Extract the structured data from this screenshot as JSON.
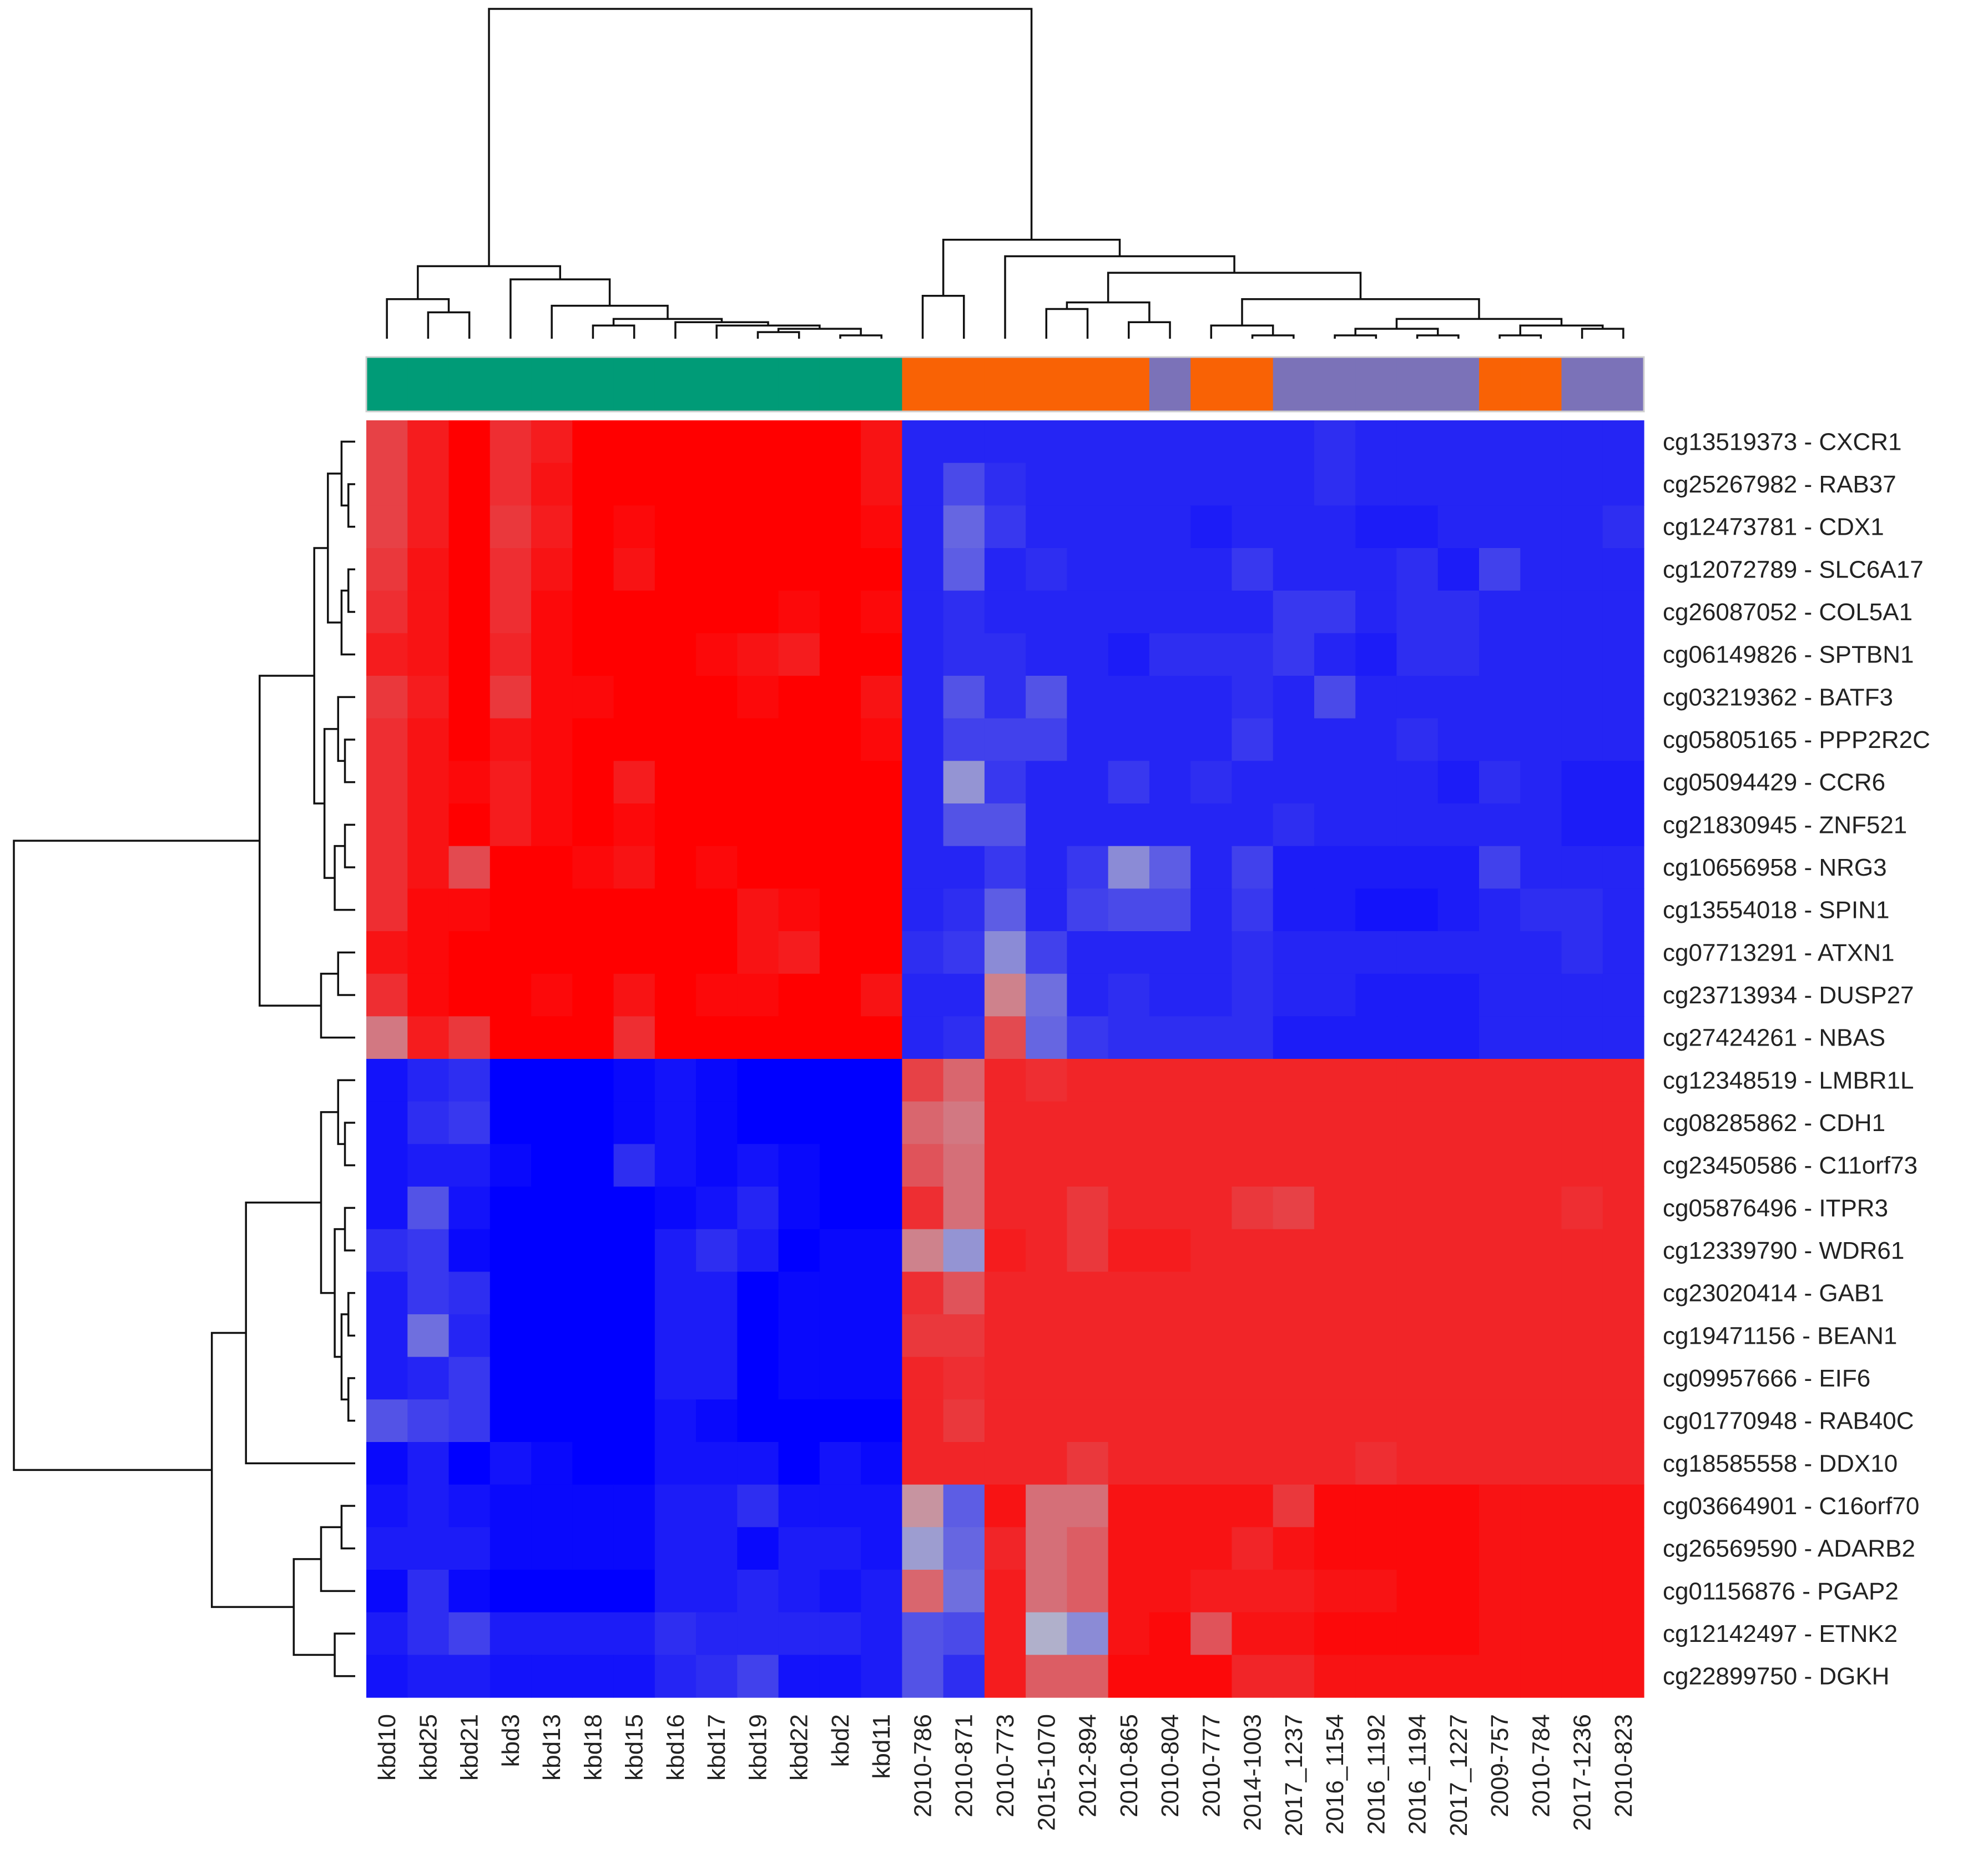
{
  "chart_data": {
    "type": "heatmap",
    "title": "",
    "columns": [
      "kbd10",
      "kbd25",
      "kbd21",
      "kbd3",
      "kbd13",
      "kbd18",
      "kbd15",
      "kbd16",
      "kbd17",
      "kbd19",
      "kbd22",
      "kbd2",
      "kbd11",
      "2010-786",
      "2010-871",
      "2010-773",
      "2015-1070",
      "2012-894",
      "2010-865",
      "2010-804",
      "2010-777",
      "2014-1003",
      "2017_1237",
      "2016_1154",
      "2016_1192",
      "2016_1194",
      "2017_1227",
      "2009-757",
      "2010-784",
      "2017-1236",
      "2010-823"
    ],
    "rows": [
      "cg13519373 - CXCR1",
      "cg25267982 - RAB37",
      "cg12473781 - CDX1",
      "cg12072789 - SLC6A17",
      "cg26087052 - COL5A1",
      "cg06149826 - SPTBN1",
      "cg03219362 - BATF3",
      "cg05805165 - PPP2R2C",
      "cg05094429 - CCR6",
      "cg21830945 - ZNF521",
      "cg10656958 - NRG3",
      "cg13554018 - SPIN1",
      "cg07713291 - ATXN1",
      "cg23713934 - DUSP27",
      "cg27424261 - NBAS",
      "cg12348519 - LMBR1L",
      "cg08285862 - CDH1",
      "cg23450586 - C11orf73",
      "cg05876496 - ITPR3",
      "cg12339790 - WDR61",
      "cg23020414 - GAB1",
      "cg19471156 - BEAN1",
      "cg09957666 - EIF6",
      "cg01770948 - RAB40C",
      "cg18585558 - DDX10",
      "cg03664901 - C16orf70",
      "cg26569590 - ADARB2",
      "cg01156876 - PGAP2",
      "cg12142497 - ETNK2",
      "cg22899750 - DGKH"
    ],
    "column_groups": [
      "A",
      "A",
      "A",
      "A",
      "A",
      "A",
      "A",
      "A",
      "A",
      "A",
      "A",
      "A",
      "A",
      "B",
      "B",
      "B",
      "B",
      "B",
      "B",
      "C",
      "B",
      "B",
      "C",
      "C",
      "C",
      "C",
      "C",
      "B",
      "B",
      "C",
      "C"
    ],
    "group_colors": {
      "A": "#009b77",
      "B": "#f96205",
      "C": "#7b72b8"
    },
    "color_scale": {
      "low": "#0000ff",
      "mid": "#b9b9c8",
      "high": "#ff0000",
      "range": [
        -1,
        1
      ]
    },
    "values": [
      [
        0.65,
        0.85,
        1.0,
        0.75,
        0.85,
        1.0,
        1.0,
        1.0,
        1.0,
        1.0,
        1.0,
        1.0,
        0.9,
        -0.8,
        -0.8,
        -0.8,
        -0.8,
        -0.8,
        -0.8,
        -0.8,
        -0.8,
        -0.8,
        -0.8,
        -0.75,
        -0.8,
        -0.8,
        -0.8,
        -0.8,
        -0.8,
        -0.8,
        -0.8
      ],
      [
        0.65,
        0.85,
        1.0,
        0.75,
        0.9,
        1.0,
        1.0,
        1.0,
        1.0,
        1.0,
        1.0,
        1.0,
        0.9,
        -0.8,
        -0.6,
        -0.75,
        -0.8,
        -0.8,
        -0.8,
        -0.8,
        -0.8,
        -0.8,
        -0.8,
        -0.75,
        -0.8,
        -0.8,
        -0.8,
        -0.8,
        -0.8,
        -0.8,
        -0.8
      ],
      [
        0.65,
        0.85,
        1.0,
        0.7,
        0.85,
        1.0,
        0.95,
        1.0,
        1.0,
        1.0,
        1.0,
        1.0,
        0.95,
        -0.8,
        -0.45,
        -0.7,
        -0.8,
        -0.8,
        -0.8,
        -0.8,
        -0.85,
        -0.8,
        -0.8,
        -0.8,
        -0.85,
        -0.85,
        -0.8,
        -0.8,
        -0.8,
        -0.8,
        -0.75
      ],
      [
        0.7,
        0.9,
        1.0,
        0.75,
        0.9,
        1.0,
        0.9,
        1.0,
        1.0,
        1.0,
        1.0,
        1.0,
        1.0,
        -0.8,
        -0.5,
        -0.8,
        -0.75,
        -0.8,
        -0.8,
        -0.8,
        -0.8,
        -0.7,
        -0.8,
        -0.8,
        -0.8,
        -0.75,
        -0.85,
        -0.65,
        -0.8,
        -0.8,
        -0.8
      ],
      [
        0.75,
        0.9,
        1.0,
        0.75,
        0.95,
        1.0,
        1.0,
        1.0,
        1.0,
        1.0,
        0.95,
        1.0,
        0.95,
        -0.8,
        -0.75,
        -0.8,
        -0.8,
        -0.8,
        -0.8,
        -0.8,
        -0.8,
        -0.8,
        -0.7,
        -0.7,
        -0.8,
        -0.75,
        -0.75,
        -0.8,
        -0.8,
        -0.8,
        -0.8
      ],
      [
        0.85,
        0.9,
        1.0,
        0.8,
        0.95,
        1.0,
        1.0,
        1.0,
        0.95,
        0.9,
        0.85,
        1.0,
        1.0,
        -0.8,
        -0.75,
        -0.75,
        -0.8,
        -0.8,
        -0.85,
        -0.75,
        -0.75,
        -0.75,
        -0.7,
        -0.8,
        -0.85,
        -0.75,
        -0.75,
        -0.8,
        -0.8,
        -0.8,
        -0.8
      ],
      [
        0.7,
        0.85,
        1.0,
        0.7,
        0.95,
        0.95,
        1.0,
        1.0,
        1.0,
        0.95,
        1.0,
        1.0,
        0.9,
        -0.8,
        -0.55,
        -0.75,
        -0.55,
        -0.8,
        -0.8,
        -0.8,
        -0.8,
        -0.75,
        -0.8,
        -0.6,
        -0.8,
        -0.8,
        -0.8,
        -0.8,
        -0.8,
        -0.8,
        -0.8
      ],
      [
        0.75,
        0.9,
        1.0,
        0.9,
        0.95,
        1.0,
        1.0,
        1.0,
        1.0,
        1.0,
        1.0,
        1.0,
        0.95,
        -0.8,
        -0.65,
        -0.65,
        -0.65,
        -0.8,
        -0.8,
        -0.8,
        -0.8,
        -0.7,
        -0.8,
        -0.8,
        -0.8,
        -0.75,
        -0.8,
        -0.8,
        -0.8,
        -0.8,
        -0.8
      ],
      [
        0.75,
        0.9,
        0.95,
        0.85,
        0.95,
        1.0,
        0.85,
        1.0,
        1.0,
        1.0,
        1.0,
        1.0,
        1.0,
        -0.8,
        -0.2,
        -0.7,
        -0.8,
        -0.8,
        -0.7,
        -0.8,
        -0.75,
        -0.8,
        -0.8,
        -0.8,
        -0.8,
        -0.8,
        -0.85,
        -0.75,
        -0.8,
        -0.85,
        -0.85
      ],
      [
        0.75,
        0.9,
        1.0,
        0.85,
        0.95,
        1.0,
        0.95,
        1.0,
        1.0,
        1.0,
        1.0,
        1.0,
        1.0,
        -0.8,
        -0.55,
        -0.55,
        -0.8,
        -0.8,
        -0.8,
        -0.8,
        -0.8,
        -0.8,
        -0.75,
        -0.8,
        -0.8,
        -0.8,
        -0.8,
        -0.8,
        -0.8,
        -0.85,
        -0.85
      ],
      [
        0.75,
        0.9,
        0.6,
        1.0,
        1.0,
        0.95,
        0.9,
        1.0,
        0.95,
        1.0,
        1.0,
        1.0,
        1.0,
        -0.8,
        -0.8,
        -0.7,
        -0.8,
        -0.7,
        -0.25,
        -0.5,
        -0.8,
        -0.65,
        -0.85,
        -0.85,
        -0.85,
        -0.85,
        -0.85,
        -0.65,
        -0.8,
        -0.8,
        -0.8
      ],
      [
        0.75,
        0.95,
        0.95,
        1.0,
        1.0,
        1.0,
        1.0,
        1.0,
        1.0,
        0.9,
        0.95,
        1.0,
        1.0,
        -0.8,
        -0.75,
        -0.5,
        -0.8,
        -0.65,
        -0.6,
        -0.6,
        -0.8,
        -0.7,
        -0.85,
        -0.85,
        -0.9,
        -0.9,
        -0.85,
        -0.8,
        -0.75,
        -0.75,
        -0.8
      ],
      [
        0.9,
        0.95,
        1.0,
        1.0,
        1.0,
        1.0,
        1.0,
        1.0,
        1.0,
        0.9,
        0.85,
        1.0,
        1.0,
        -0.75,
        -0.7,
        -0.25,
        -0.65,
        -0.8,
        -0.8,
        -0.8,
        -0.8,
        -0.75,
        -0.8,
        -0.8,
        -0.8,
        -0.8,
        -0.8,
        -0.8,
        -0.8,
        -0.75,
        -0.8
      ],
      [
        0.75,
        0.95,
        1.0,
        1.0,
        0.95,
        1.0,
        0.9,
        1.0,
        0.95,
        0.95,
        1.0,
        1.0,
        0.9,
        -0.8,
        -0.8,
        0.3,
        -0.4,
        -0.8,
        -0.75,
        -0.8,
        -0.8,
        -0.75,
        -0.8,
        -0.8,
        -0.85,
        -0.85,
        -0.85,
        -0.8,
        -0.8,
        -0.8,
        -0.8
      ],
      [
        0.35,
        0.85,
        0.7,
        1.0,
        1.0,
        1.0,
        0.75,
        1.0,
        1.0,
        1.0,
        1.0,
        1.0,
        1.0,
        -0.8,
        -0.75,
        0.6,
        -0.45,
        -0.7,
        -0.75,
        -0.75,
        -0.75,
        -0.75,
        -0.85,
        -0.85,
        -0.85,
        -0.85,
        -0.85,
        -0.8,
        -0.8,
        -0.8,
        -0.8
      ],
      [
        -0.9,
        -0.8,
        -0.75,
        -1.0,
        -1.0,
        -1.0,
        -0.95,
        -0.9,
        -0.95,
        -1.0,
        -1.0,
        -1.0,
        -1.0,
        0.65,
        0.45,
        0.8,
        0.75,
        0.8,
        0.8,
        0.8,
        0.8,
        0.8,
        0.8,
        0.8,
        0.8,
        0.8,
        0.8,
        0.8,
        0.8,
        0.8,
        0.8
      ],
      [
        -0.9,
        -0.75,
        -0.7,
        -1.0,
        -1.0,
        -1.0,
        -0.95,
        -0.9,
        -0.95,
        -1.0,
        -1.0,
        -1.0,
        -1.0,
        0.45,
        0.35,
        0.8,
        0.8,
        0.8,
        0.8,
        0.8,
        0.8,
        0.8,
        0.8,
        0.8,
        0.8,
        0.8,
        0.8,
        0.8,
        0.8,
        0.8,
        0.8
      ],
      [
        -0.9,
        -0.85,
        -0.85,
        -0.95,
        -1.0,
        -1.0,
        -0.75,
        -0.9,
        -0.95,
        -0.9,
        -0.95,
        -1.0,
        -1.0,
        0.55,
        0.4,
        0.8,
        0.8,
        0.8,
        0.8,
        0.8,
        0.8,
        0.8,
        0.8,
        0.8,
        0.8,
        0.8,
        0.8,
        0.8,
        0.8,
        0.8,
        0.8
      ],
      [
        -0.9,
        -0.55,
        -0.9,
        -1.0,
        -1.0,
        -1.0,
        -1.0,
        -0.95,
        -0.9,
        -0.8,
        -0.95,
        -1.0,
        -1.0,
        0.75,
        0.4,
        0.8,
        0.8,
        0.7,
        0.8,
        0.8,
        0.8,
        0.7,
        0.65,
        0.8,
        0.8,
        0.8,
        0.8,
        0.8,
        0.8,
        0.75,
        0.8
      ],
      [
        -0.75,
        -0.7,
        -0.95,
        -1.0,
        -1.0,
        -1.0,
        -1.0,
        -0.85,
        -0.75,
        -0.85,
        -1.0,
        -0.95,
        -0.95,
        0.3,
        -0.2,
        0.85,
        0.8,
        0.7,
        0.85,
        0.85,
        0.8,
        0.8,
        0.8,
        0.8,
        0.8,
        0.8,
        0.8,
        0.8,
        0.8,
        0.8,
        0.8
      ],
      [
        -0.85,
        -0.7,
        -0.75,
        -1.0,
        -1.0,
        -1.0,
        -1.0,
        -0.85,
        -0.85,
        -1.0,
        -0.95,
        -0.95,
        -0.95,
        0.75,
        0.55,
        0.8,
        0.8,
        0.8,
        0.8,
        0.8,
        0.8,
        0.8,
        0.8,
        0.8,
        0.8,
        0.8,
        0.8,
        0.8,
        0.8,
        0.8,
        0.8
      ],
      [
        -0.85,
        -0.4,
        -0.8,
        -1.0,
        -1.0,
        -1.0,
        -1.0,
        -0.85,
        -0.85,
        -1.0,
        -0.95,
        -0.95,
        -0.95,
        0.7,
        0.7,
        0.8,
        0.8,
        0.8,
        0.8,
        0.8,
        0.8,
        0.8,
        0.8,
        0.8,
        0.8,
        0.8,
        0.8,
        0.8,
        0.8,
        0.8,
        0.8
      ],
      [
        -0.85,
        -0.8,
        -0.7,
        -1.0,
        -1.0,
        -1.0,
        -1.0,
        -0.85,
        -0.85,
        -1.0,
        -0.95,
        -0.95,
        -0.95,
        0.8,
        0.75,
        0.8,
        0.8,
        0.8,
        0.8,
        0.8,
        0.8,
        0.8,
        0.8,
        0.8,
        0.8,
        0.8,
        0.8,
        0.8,
        0.8,
        0.8,
        0.8
      ],
      [
        -0.55,
        -0.65,
        -0.7,
        -1.0,
        -1.0,
        -1.0,
        -1.0,
        -0.9,
        -0.95,
        -1.0,
        -1.0,
        -1.0,
        -1.0,
        0.8,
        0.7,
        0.8,
        0.8,
        0.8,
        0.8,
        0.8,
        0.8,
        0.8,
        0.8,
        0.8,
        0.8,
        0.8,
        0.8,
        0.8,
        0.8,
        0.8,
        0.8
      ],
      [
        -0.95,
        -0.85,
        -1.0,
        -0.9,
        -0.95,
        -1.0,
        -1.0,
        -0.9,
        -0.9,
        -0.9,
        -1.0,
        -0.9,
        -0.95,
        0.8,
        0.8,
        0.8,
        0.8,
        0.7,
        0.8,
        0.8,
        0.8,
        0.8,
        0.8,
        0.8,
        0.75,
        0.8,
        0.8,
        0.8,
        0.8,
        0.8,
        0.8
      ],
      [
        -0.9,
        -0.85,
        -0.9,
        -0.95,
        -0.95,
        -0.95,
        -0.95,
        -0.85,
        -0.85,
        -0.75,
        -0.9,
        -0.9,
        -0.9,
        0.2,
        -0.5,
        0.9,
        0.4,
        0.4,
        0.9,
        0.9,
        0.9,
        0.9,
        0.7,
        0.95,
        0.95,
        0.95,
        0.95,
        0.9,
        0.9,
        0.9,
        0.9
      ],
      [
        -0.85,
        -0.85,
        -0.85,
        -0.95,
        -0.95,
        -0.95,
        -0.95,
        -0.85,
        -0.85,
        -0.95,
        -0.85,
        -0.85,
        -0.9,
        -0.15,
        -0.45,
        0.8,
        0.4,
        0.5,
        0.9,
        0.9,
        0.9,
        0.8,
        0.9,
        0.95,
        0.95,
        0.95,
        0.95,
        0.9,
        0.9,
        0.9,
        0.9
      ],
      [
        -0.95,
        -0.75,
        -0.95,
        -1.0,
        -1.0,
        -1.0,
        -1.0,
        -0.85,
        -0.85,
        -0.8,
        -0.85,
        -0.9,
        -0.85,
        0.45,
        -0.4,
        0.85,
        0.4,
        0.5,
        0.9,
        0.9,
        0.85,
        0.85,
        0.85,
        0.9,
        0.9,
        0.95,
        0.95,
        0.9,
        0.9,
        0.9,
        0.9
      ],
      [
        -0.85,
        -0.75,
        -0.65,
        -0.85,
        -0.85,
        -0.85,
        -0.85,
        -0.75,
        -0.8,
        -0.8,
        -0.8,
        -0.8,
        -0.85,
        -0.55,
        -0.6,
        0.85,
        -0.05,
        -0.25,
        0.9,
        0.95,
        0.55,
        0.9,
        0.9,
        0.95,
        0.95,
        0.95,
        0.95,
        0.9,
        0.9,
        0.9,
        0.9
      ],
      [
        -0.9,
        -0.85,
        -0.85,
        -0.9,
        -0.9,
        -0.9,
        -0.9,
        -0.8,
        -0.75,
        -0.65,
        -0.9,
        -0.9,
        -0.85,
        -0.55,
        -0.75,
        0.85,
        0.5,
        0.5,
        0.95,
        0.95,
        0.95,
        0.8,
        0.8,
        0.9,
        0.9,
        0.9,
        0.9,
        0.9,
        0.9,
        0.9,
        0.9
      ]
    ],
    "row_order_dendrogram": "hierarchical",
    "column_order_dendrogram": "hierarchical",
    "legend": "none"
  }
}
